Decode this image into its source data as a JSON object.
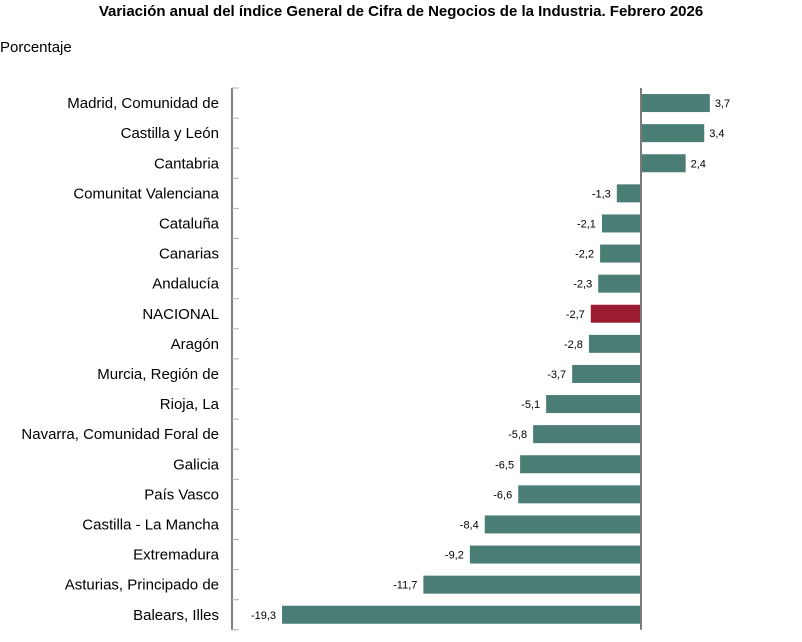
{
  "chart_data": {
    "type": "bar",
    "orientation": "horizontal",
    "title": "Variación anual del índice General de Cifra de Negocios de la Industria. Febrero 2026",
    "ylabel": "Porcentaje",
    "xlabel": "",
    "categories": [
      "Madrid, Comunidad de",
      "Castilla y León",
      "Cantabria",
      "Comunitat Valenciana",
      "Cataluña",
      "Canarias",
      "Andalucía",
      "NACIONAL",
      "Aragón",
      "Murcia, Región de",
      "Rioja, La",
      "Navarra, Comunidad Foral de",
      "Galicia",
      "País Vasco",
      "Castilla - La Mancha",
      "Extremadura",
      "Asturias, Principado de",
      "Balears, Illes"
    ],
    "values": [
      3.7,
      3.4,
      2.4,
      -1.3,
      -2.1,
      -2.2,
      -2.3,
      -2.7,
      -2.8,
      -3.7,
      -5.1,
      -5.8,
      -6.5,
      -6.6,
      -8.4,
      -9.2,
      -11.7,
      -19.3
    ],
    "value_labels": [
      "3,7",
      "3,4",
      "2,4",
      "-1,3",
      "-2,1",
      "-2,2",
      "-2,3",
      "-2,7",
      "-2,8",
      "-3,7",
      "-5,1",
      "-5,8",
      "-6,5",
      "-6,6",
      "-8,4",
      "-9,2",
      "-11,7",
      "-19,3"
    ],
    "highlight": "NACIONAL",
    "xlim": [
      -21.99,
      8.6
    ],
    "grid": false,
    "colors": {
      "bar": "#4a7d74",
      "highlight": "#9b1b30",
      "axis": "#808080"
    }
  }
}
